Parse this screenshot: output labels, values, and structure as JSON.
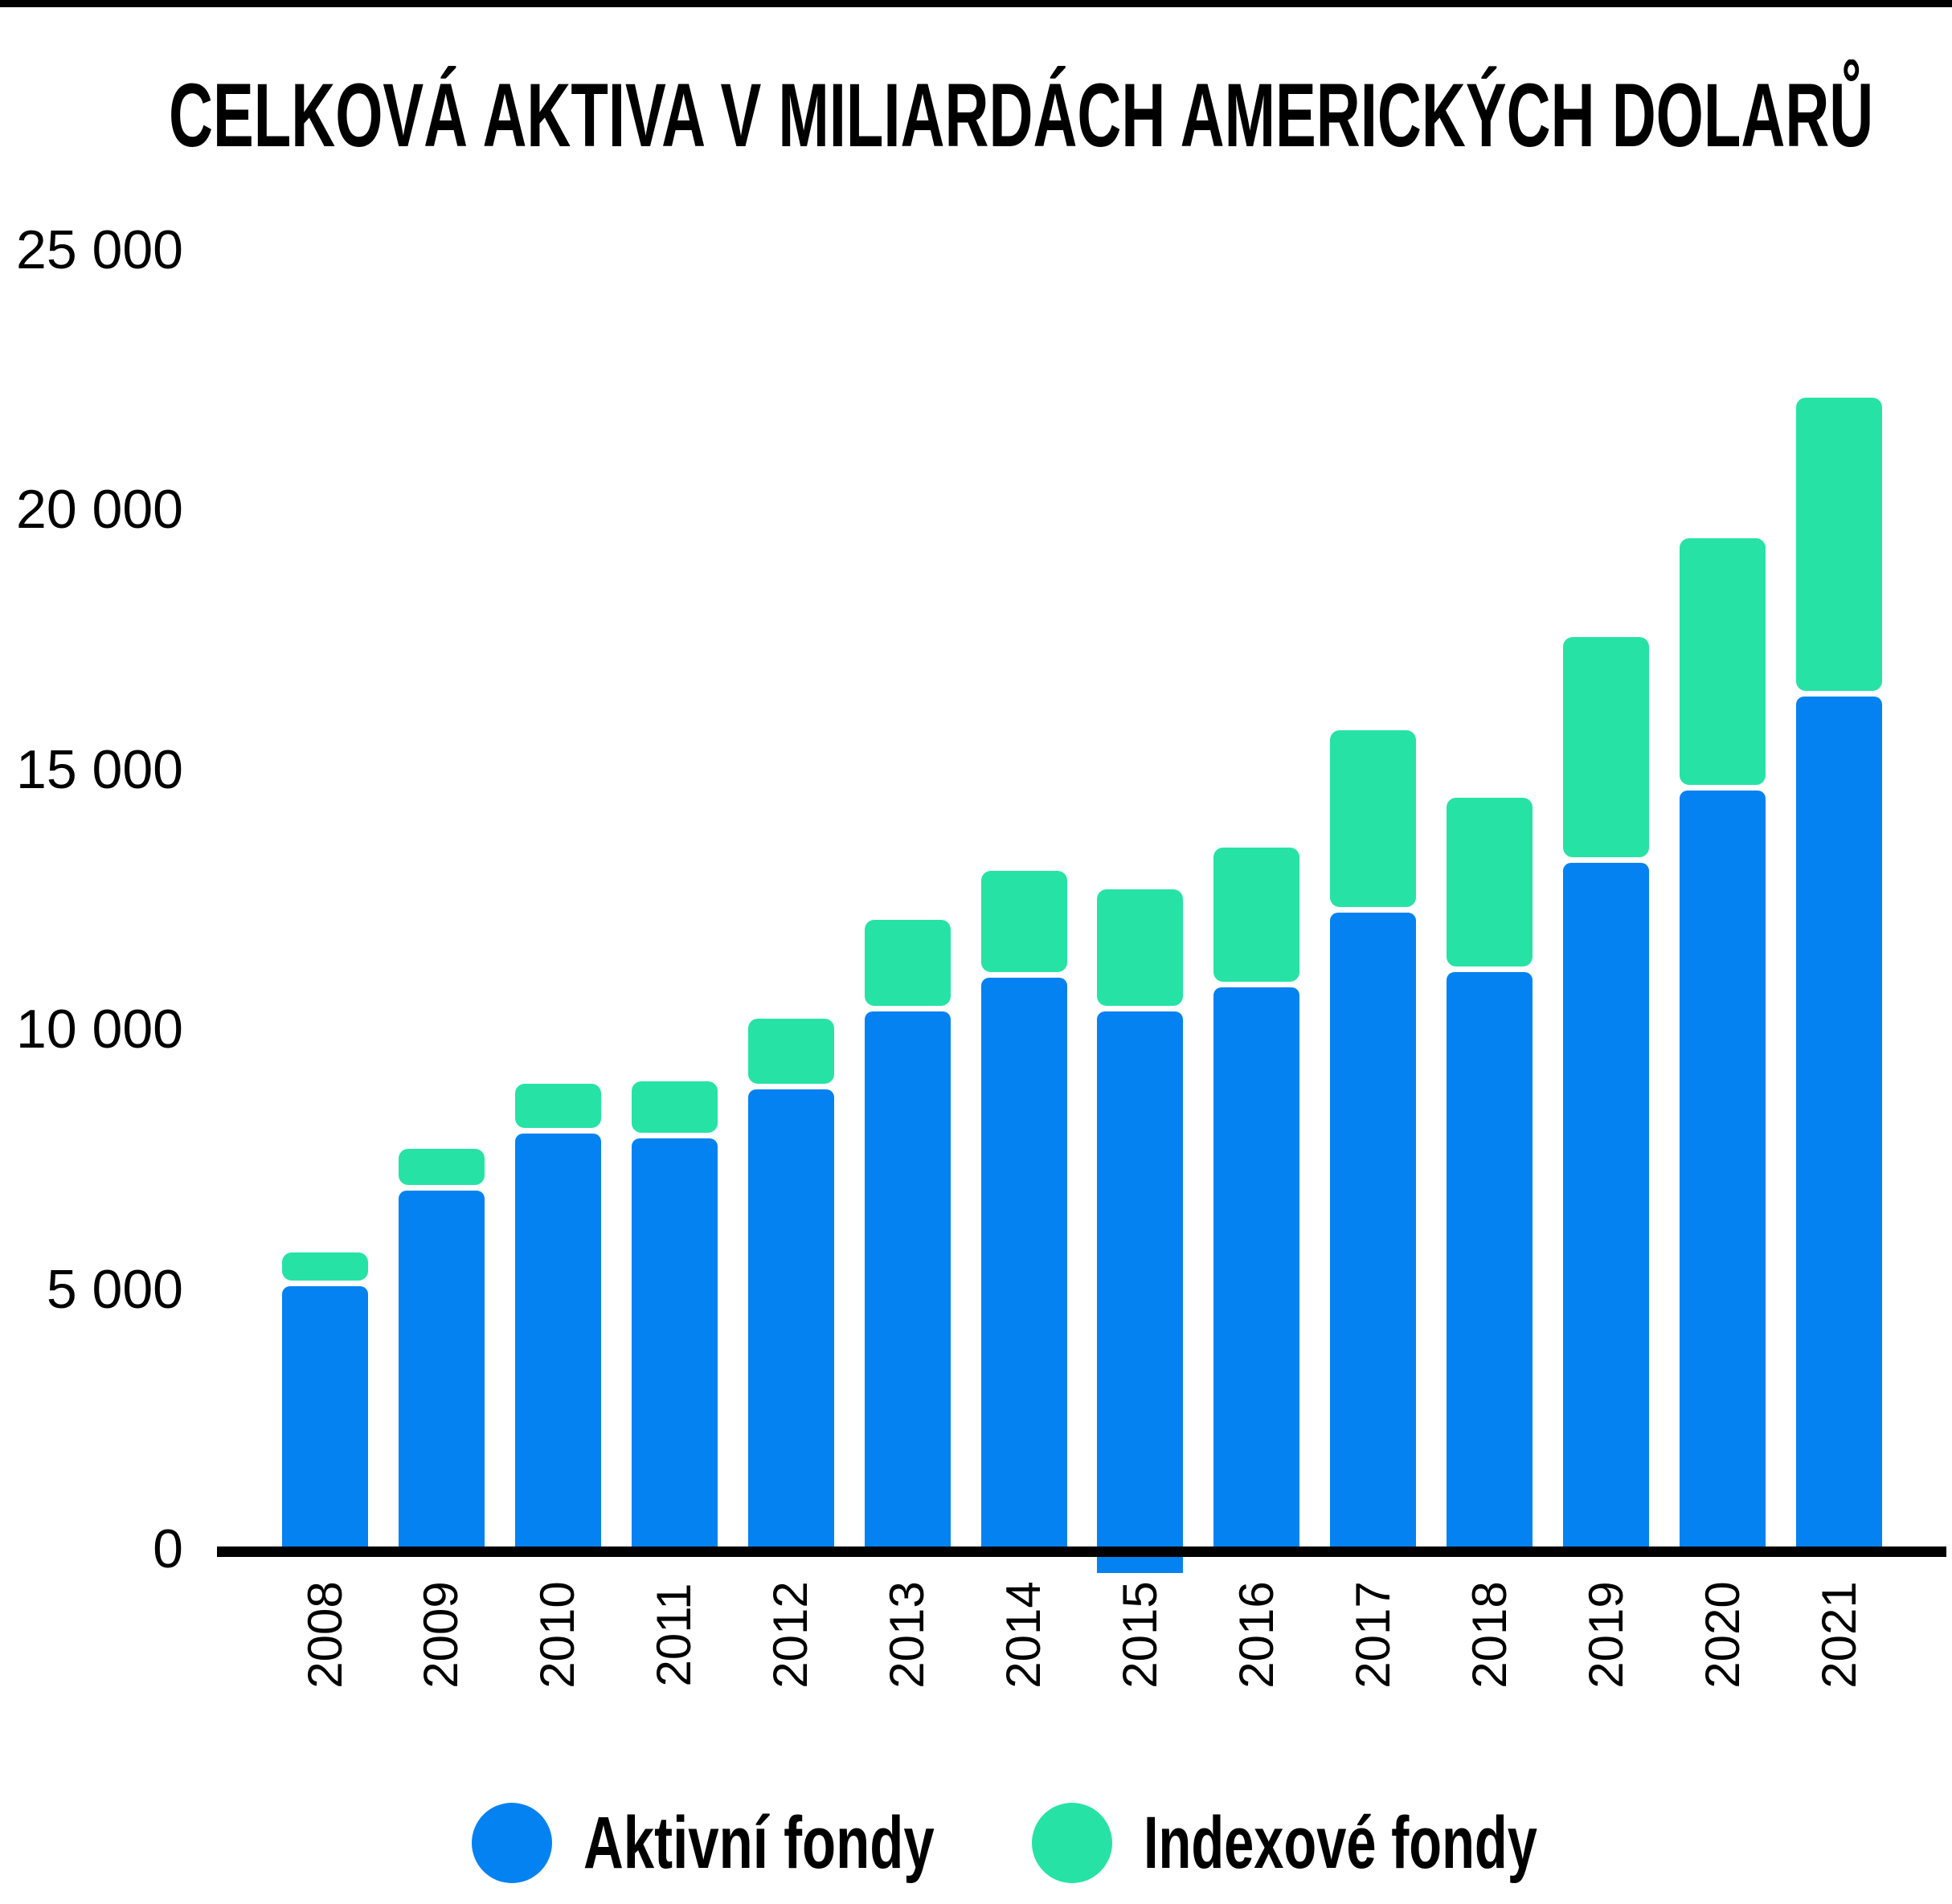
{
  "title": "CELKOVÁ AKTIVA V MILIARDÁCH AMERICKÝCH DOLARŮ",
  "y_axis": {
    "ticks": [
      {
        "label": "25 000",
        "value": 25000
      },
      {
        "label": "20 000",
        "value": 20000
      },
      {
        "label": "15 000",
        "value": 15000
      },
      {
        "label": "10 000",
        "value": 10000
      },
      {
        "label": "5 000",
        "value": 5000
      },
      {
        "label": "0",
        "value": 0
      }
    ]
  },
  "legend": {
    "items": [
      {
        "label": "Aktivní fondy",
        "color": "#0582F2"
      },
      {
        "label": "Indexové fondy",
        "color": "#26E3A5"
      }
    ]
  },
  "chart_data": {
    "type": "bar",
    "stacked": true,
    "title": "CELKOVÁ AKTIVA V MILIARDÁCH AMERICKÝCH DOLARŮ",
    "categories": [
      "2008",
      "2009",
      "2010",
      "2011",
      "2012",
      "2013",
      "2014",
      "2015",
      "2016",
      "2017",
      "2018",
      "2019",
      "2020",
      "2021"
    ],
    "series": [
      {
        "name": "Aktivní fondy",
        "color": "#0582F2",
        "values": [
          5050,
          6900,
          8000,
          7900,
          8850,
          10350,
          11000,
          10350,
          10800,
          12250,
          11100,
          13200,
          14600,
          16400
        ]
      },
      {
        "name": "Indexové fondy",
        "color": "#26E3A5",
        "values": [
          650,
          800,
          950,
          1100,
          1350,
          1750,
          2050,
          2350,
          2700,
          3500,
          3350,
          4350,
          4850,
          5750
        ]
      }
    ],
    "totals": [
      5700,
      7700,
      8950,
      9000,
      10200,
      12100,
      13050,
      12700,
      13500,
      15750,
      14450,
      17550,
      19450,
      22150
    ],
    "xlabel": "",
    "ylabel": "",
    "ylim": [
      0,
      25000
    ],
    "grid": false,
    "legend_position": "bottom"
  }
}
